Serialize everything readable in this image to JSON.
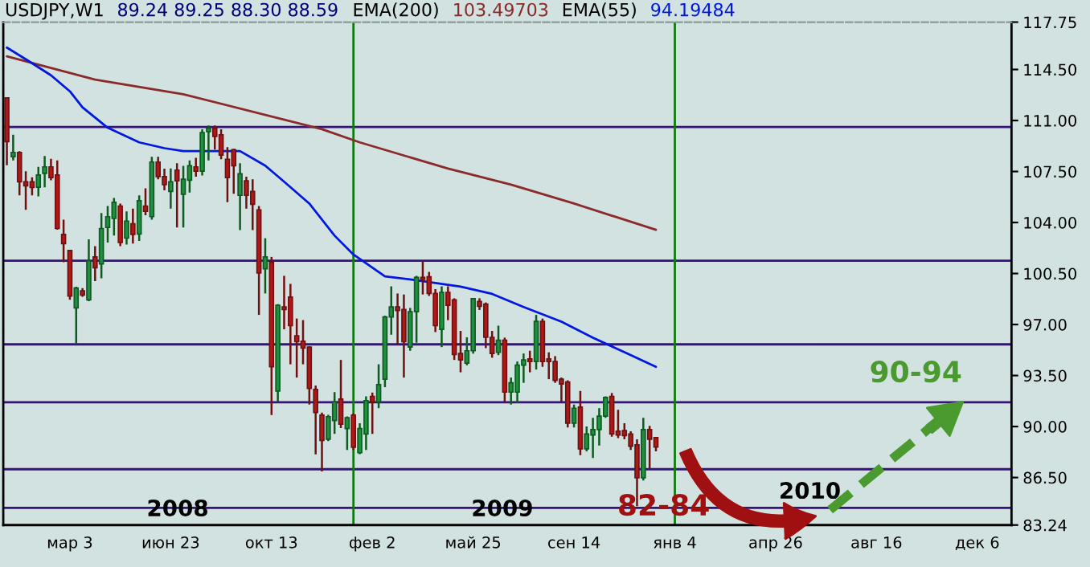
{
  "chart_data": {
    "type": "candlestick",
    "title": "USDJPY,W1",
    "x": [
      "2007-12-24",
      "2007-12-31",
      "2008-01-07",
      "2008-01-14",
      "2008-01-21",
      "2008-01-28",
      "2008-02-04",
      "2008-02-11",
      "2008-02-18",
      "2008-02-25",
      "2008-03-03",
      "2008-03-10",
      "2008-03-17",
      "2008-03-24",
      "2008-03-31",
      "2008-04-07",
      "2008-04-14",
      "2008-04-21",
      "2008-04-28",
      "2008-05-05",
      "2008-05-12",
      "2008-05-19",
      "2008-05-26",
      "2008-06-02",
      "2008-06-09",
      "2008-06-16",
      "2008-06-23",
      "2008-06-30",
      "2008-07-07",
      "2008-07-14",
      "2008-07-21",
      "2008-07-28",
      "2008-08-04",
      "2008-08-11",
      "2008-08-18",
      "2008-08-25",
      "2008-09-01",
      "2008-09-08",
      "2008-09-15",
      "2008-09-22",
      "2008-09-29",
      "2008-10-06",
      "2008-10-13",
      "2008-10-20",
      "2008-10-27",
      "2008-11-03",
      "2008-11-10",
      "2008-11-17",
      "2008-11-24",
      "2008-12-01",
      "2008-12-08",
      "2008-12-15",
      "2008-12-22",
      "2008-12-29",
      "2009-01-05",
      "2009-01-12",
      "2009-01-19",
      "2009-01-26",
      "2009-02-02",
      "2009-02-09",
      "2009-02-16",
      "2009-02-23",
      "2009-03-02",
      "2009-03-09",
      "2009-03-16",
      "2009-03-23",
      "2009-03-30",
      "2009-04-06",
      "2009-04-13",
      "2009-04-20",
      "2009-04-27",
      "2009-05-04",
      "2009-05-11",
      "2009-05-18",
      "2009-05-25",
      "2009-06-01",
      "2009-06-08",
      "2009-06-15",
      "2009-06-22",
      "2009-06-29",
      "2009-07-06",
      "2009-07-13",
      "2009-07-20",
      "2009-07-27",
      "2009-08-03",
      "2009-08-10",
      "2009-08-17",
      "2009-08-24",
      "2009-08-31",
      "2009-09-07",
      "2009-09-14",
      "2009-09-21",
      "2009-09-28",
      "2009-10-05",
      "2009-10-12",
      "2009-10-19",
      "2009-10-26",
      "2009-11-02",
      "2009-11-09",
      "2009-11-16",
      "2009-11-23",
      "2009-11-30",
      "2009-12-07",
      "2009-12-14"
    ],
    "ohlc": [
      [
        112.56,
        112.6,
        107.93,
        109.55
      ],
      [
        108.51,
        110.02,
        108.26,
        108.81
      ],
      [
        108.81,
        108.9,
        105.86,
        106.79
      ],
      [
        106.79,
        107.52,
        104.87,
        106.52
      ],
      [
        106.8,
        107.1,
        105.86,
        106.4
      ],
      [
        106.42,
        107.82,
        105.8,
        107.26
      ],
      [
        107.37,
        108.56,
        106.42,
        107.82
      ],
      [
        107.82,
        108.37,
        106.9,
        107.08
      ],
      [
        107.26,
        108.26,
        103.5,
        103.59
      ],
      [
        103.18,
        104.2,
        101.27,
        102.55
      ],
      [
        102.08,
        102.1,
        98.7,
        98.95
      ],
      [
        98.14,
        99.6,
        95.67,
        99.5
      ],
      [
        99.32,
        99.5,
        98.9,
        99.02
      ],
      [
        98.69,
        102.85,
        98.6,
        101.38
      ],
      [
        101.64,
        102.37,
        99.98,
        100.9
      ],
      [
        101.16,
        104.65,
        100.17,
        103.59
      ],
      [
        103.66,
        105.13,
        102.63,
        104.4
      ],
      [
        104.28,
        105.68,
        103.1,
        105.39
      ],
      [
        105.13,
        105.3,
        102.37,
        102.63
      ],
      [
        102.93,
        104.76,
        102.48,
        104.1
      ],
      [
        103.92,
        104.95,
        102.55,
        103.18
      ],
      [
        103.21,
        105.86,
        102.74,
        105.5
      ],
      [
        105.13,
        106.35,
        104.5,
        104.76
      ],
      [
        104.4,
        108.51,
        104.2,
        108.15
      ],
      [
        108.15,
        108.51,
        106.97,
        107.15
      ],
      [
        107.15,
        107.7,
        106.2,
        106.6
      ],
      [
        106.13,
        107.71,
        104.95,
        106.79
      ],
      [
        107.6,
        108.07,
        103.66,
        106.86
      ],
      [
        105.94,
        107.89,
        103.66,
        106.97
      ],
      [
        106.9,
        108.26,
        106.05,
        107.89
      ],
      [
        107.82,
        108.44,
        107.15,
        107.52
      ],
      [
        107.52,
        110.39,
        107.23,
        110.17
      ],
      [
        110.24,
        110.65,
        108.26,
        110.47
      ],
      [
        110.47,
        110.65,
        109.0,
        109.91
      ],
      [
        110.02,
        110.39,
        108.34,
        108.62
      ],
      [
        108.34,
        109.17,
        105.39,
        107.08
      ],
      [
        109.0,
        109.06,
        105.97,
        107.89
      ],
      [
        105.86,
        108.07,
        103.48,
        107.34
      ],
      [
        106.86,
        107.15,
        104.95,
        105.86
      ],
      [
        106.13,
        106.97,
        103.48,
        105.25
      ],
      [
        104.87,
        105.13,
        97.66,
        100.53
      ],
      [
        100.83,
        102.92,
        99.13,
        101.64
      ],
      [
        101.27,
        101.64,
        90.79,
        94.1
      ],
      [
        92.44,
        98.4,
        91.7,
        98.32
      ],
      [
        98.21,
        100.34,
        96.67,
        98.03
      ],
      [
        98.88,
        99.79,
        94.27,
        96.92
      ],
      [
        96.23,
        97.41,
        93.36,
        95.82
      ],
      [
        95.86,
        97.3,
        94.27,
        95.38
      ],
      [
        95.45,
        95.5,
        91.51,
        92.62
      ],
      [
        92.55,
        92.81,
        88.09,
        90.96
      ],
      [
        90.79,
        90.96,
        86.92,
        89.05
      ],
      [
        89.13,
        90.8,
        89.0,
        90.68
      ],
      [
        90.41,
        92.36,
        89.49,
        91.7
      ],
      [
        91.89,
        94.57,
        89.9,
        90.16
      ],
      [
        89.86,
        90.7,
        88.39,
        90.6
      ],
      [
        90.79,
        90.9,
        88.39,
        88.58
      ],
      [
        88.2,
        90.23,
        88.1,
        89.86
      ],
      [
        89.49,
        92.07,
        88.39,
        91.78
      ],
      [
        92.07,
        92.33,
        89.49,
        91.7
      ],
      [
        91.7,
        94.27,
        91.26,
        92.88
      ],
      [
        93.25,
        97.6,
        92.7,
        97.52
      ],
      [
        97.52,
        99.62,
        96.3,
        98.21
      ],
      [
        98.21,
        99.13,
        95.57,
        97.96
      ],
      [
        98.03,
        99.06,
        93.36,
        95.82
      ],
      [
        95.45,
        98.14,
        95.2,
        97.88
      ],
      [
        97.88,
        100.34,
        95.75,
        100.23
      ],
      [
        100.23,
        101.34,
        99.06,
        100.09
      ],
      [
        100.28,
        100.61,
        98.96,
        99.13
      ],
      [
        99.13,
        99.43,
        96.48,
        96.92
      ],
      [
        96.67,
        99.62,
        95.45,
        99.21
      ],
      [
        99.21,
        99.62,
        97.3,
        98.32
      ],
      [
        98.69,
        98.8,
        94.57,
        94.94
      ],
      [
        95.01,
        96.56,
        93.72,
        94.57
      ],
      [
        94.35,
        96.12,
        94.2,
        95.2
      ],
      [
        95.2,
        98.8,
        95.0,
        98.77
      ],
      [
        98.58,
        98.8,
        98.0,
        98.25
      ],
      [
        98.4,
        98.51,
        95.38,
        96.12
      ],
      [
        96.12,
        96.56,
        94.72,
        95.01
      ],
      [
        95.09,
        96.92,
        94.9,
        95.93
      ],
      [
        95.93,
        96.1,
        91.7,
        92.36
      ],
      [
        92.36,
        93.36,
        91.51,
        93.0
      ],
      [
        92.36,
        94.46,
        91.62,
        94.21
      ],
      [
        94.21,
        95.01,
        93.0,
        94.57
      ],
      [
        94.64,
        95.2,
        93.72,
        94.46
      ],
      [
        94.46,
        97.66,
        93.91,
        97.22
      ],
      [
        97.22,
        97.41,
        94.1,
        94.46
      ],
      [
        94.64,
        95.09,
        93.25,
        94.46
      ],
      [
        94.46,
        94.83,
        93.0,
        93.17
      ],
      [
        93.25,
        93.36,
        91.7,
        92.92
      ],
      [
        93.06,
        93.17,
        89.94,
        90.23
      ],
      [
        90.23,
        91.51,
        89.94,
        91.26
      ],
      [
        91.33,
        92.44,
        88.03,
        88.47
      ],
      [
        88.47,
        90.0,
        88.3,
        89.49
      ],
      [
        89.42,
        90.6,
        87.84,
        89.79
      ],
      [
        89.79,
        91.26,
        88.69,
        90.71
      ],
      [
        90.71,
        92.07,
        90.6,
        92.0
      ],
      [
        92.07,
        92.3,
        89.3,
        89.49
      ],
      [
        89.68,
        91.15,
        89.2,
        89.42
      ],
      [
        89.72,
        90.23,
        89.13,
        89.38
      ],
      [
        89.49,
        89.68,
        88.39,
        88.65
      ],
      [
        88.75,
        89.13,
        84.53,
        86.48
      ],
      [
        86.48,
        90.6,
        86.3,
        89.79
      ],
      [
        89.79,
        90.05,
        87.1,
        89.13
      ],
      [
        89.24,
        89.25,
        88.3,
        88.59
      ]
    ],
    "series": [
      {
        "type": "line",
        "color": "#8b2a2a",
        "x": [
          "2007-12-24",
          "2008-03-31",
          "2008-07-07",
          "2008-12-08",
          "2009-01-19",
          "2009-04-27",
          "2009-07-06",
          "2009-09-14",
          "2009-12-14"
        ],
        "values": [
          115.4,
          113.8,
          112.8,
          110.4,
          109.5,
          107.7,
          106.6,
          105.3,
          103.5
        ]
      },
      {
        "type": "line",
        "color": "#0018e0",
        "x": [
          "2007-12-24",
          "2008-01-14",
          "2008-02-11",
          "2008-03-03",
          "2008-03-17",
          "2008-04-14",
          "2008-05-19",
          "2008-06-16",
          "2008-07-07",
          "2008-09-08",
          "2008-10-06",
          "2008-10-27",
          "2008-11-24",
          "2008-12-22",
          "2009-01-12",
          "2009-02-16",
          "2009-03-16",
          "2009-05-11",
          "2009-06-15",
          "2009-07-20",
          "2009-08-31",
          "2009-10-05",
          "2009-11-09",
          "2009-12-14"
        ],
        "values": [
          116.0,
          115.2,
          114.1,
          113.0,
          111.9,
          110.5,
          109.5,
          109.1,
          108.9,
          108.9,
          107.9,
          106.8,
          105.3,
          103.1,
          101.8,
          100.3,
          100.1,
          99.6,
          99.1,
          98.2,
          97.2,
          96.1,
          95.1,
          94.1
        ]
      }
    ],
    "ref_lines": [
      {
        "axis": "y",
        "value": 110.55,
        "color": "#3a1080"
      },
      {
        "axis": "y",
        "value": 101.38,
        "color": "#3a1080"
      },
      {
        "axis": "y",
        "value": 95.64,
        "color": "#3a1080"
      },
      {
        "axis": "y",
        "value": 91.67,
        "color": "#3a1080"
      },
      {
        "axis": "y",
        "value": 87.07,
        "color": "#3a1080"
      },
      {
        "axis": "y",
        "value": 84.42,
        "color": "#3a1080"
      },
      {
        "axis": "x",
        "value": "2009-01-12",
        "color": "#107a10"
      },
      {
        "axis": "x",
        "value": "2010-01-04",
        "color": "#107a10"
      }
    ],
    "annotations": [
      "89.24 89.25 88.30 88.59",
      "EMA(200)",
      "103.49703",
      "EMA(55)",
      "94.19484",
      "2008",
      "2009",
      "2010",
      "82-84",
      "90-94"
    ],
    "xlim": [
      "2007-12-20",
      "2011-01-13"
    ],
    "xticks": [
      {
        "value": "2008-03-03",
        "label": "мар 3"
      },
      {
        "value": "2008-06-23",
        "label": "июн 23"
      },
      {
        "value": "2008-10-13",
        "label": "окт 13"
      },
      {
        "value": "2009-02-02",
        "label": "фев 2"
      },
      {
        "value": "2009-05-25",
        "label": "май 25"
      },
      {
        "value": "2009-09-14",
        "label": "сен 14"
      },
      {
        "value": "2010-01-04",
        "label": "янв 4"
      },
      {
        "value": "2010-04-26",
        "label": "апр 26"
      },
      {
        "value": "2010-08-16",
        "label": "авг 16"
      },
      {
        "value": "2010-12-06",
        "label": "дек 6"
      }
    ],
    "ylim": [
      83.24,
      117.75
    ],
    "yticks": [
      117.75,
      {
        "value": 114.5,
        "label": "114.50"
      },
      {
        "value": 111,
        "label": "111.00"
      },
      {
        "value": 107.5,
        "label": "107.50"
      },
      {
        "value": 104,
        "label": "104.00"
      },
      {
        "value": 100.5,
        "label": "100.50"
      },
      {
        "value": 97,
        "label": "97.00"
      },
      {
        "value": 93.5,
        "label": "93.50"
      },
      {
        "value": 90,
        "label": "90.00"
      },
      {
        "value": 86.5,
        "label": "86.50"
      },
      83.24
    ]
  }
}
